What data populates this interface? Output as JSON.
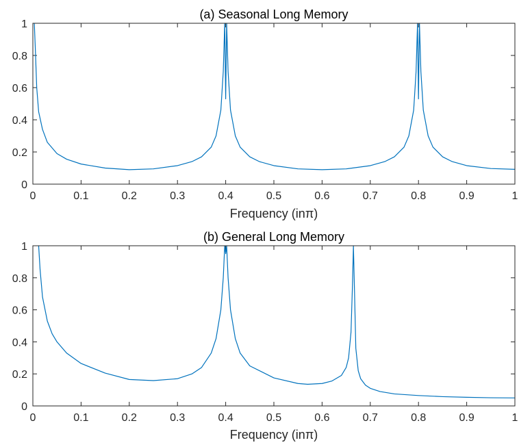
{
  "chart_data": [
    {
      "type": "line",
      "title": "(a) Seasonal Long Memory",
      "xlabel": "Frequency (inπ)",
      "ylabel": "",
      "xlim": [
        0,
        1
      ],
      "ylim": [
        0,
        1
      ],
      "xticks": [
        "0",
        "0.1",
        "0.2",
        "0.3",
        "0.4",
        "0.5",
        "0.6",
        "0.7",
        "0.8",
        "0.9",
        "1"
      ],
      "yticks": [
        "0",
        "0.2",
        "0.4",
        "0.6",
        "0.8",
        "1"
      ],
      "grid": false,
      "color": "#0072BD",
      "series": [
        {
          "x": [
            0.003,
            0.005,
            0.008,
            0.012,
            0.02,
            0.03,
            0.05,
            0.07,
            0.1,
            0.15,
            0.2,
            0.25,
            0.3,
            0.33,
            0.35,
            0.37,
            0.38,
            0.39,
            0.395,
            0.398,
            0.4,
            0.402,
            0.405,
            0.41,
            0.42,
            0.43,
            0.45,
            0.47,
            0.5,
            0.55,
            0.6,
            0.65,
            0.7,
            0.73,
            0.75,
            0.77,
            0.78,
            0.79,
            0.795,
            0.798,
            0.8,
            0.802,
            0.805,
            0.81,
            0.82,
            0.83,
            0.85,
            0.87,
            0.9,
            0.95,
            1.0
          ],
          "y": [
            1.0,
            0.85,
            0.6,
            0.45,
            0.34,
            0.26,
            0.19,
            0.155,
            0.125,
            0.1,
            0.09,
            0.095,
            0.115,
            0.14,
            0.17,
            0.23,
            0.3,
            0.46,
            0.7,
            1.0,
            0.53,
            1.0,
            0.7,
            0.46,
            0.3,
            0.23,
            0.17,
            0.14,
            0.115,
            0.095,
            0.09,
            0.095,
            0.115,
            0.14,
            0.17,
            0.23,
            0.3,
            0.46,
            0.7,
            1.0,
            0.53,
            1.0,
            0.7,
            0.46,
            0.3,
            0.23,
            0.17,
            0.14,
            0.115,
            0.097,
            0.092
          ]
        }
      ]
    },
    {
      "type": "line",
      "title": "(b) General Long Memory",
      "xlabel": "Frequency (inπ)",
      "ylabel": "",
      "xlim": [
        0,
        1
      ],
      "ylim": [
        0,
        1
      ],
      "xticks": [
        "0",
        "0.1",
        "0.2",
        "0.3",
        "0.4",
        "0.5",
        "0.6",
        "0.7",
        "0.8",
        "0.9",
        "1"
      ],
      "yticks": [
        "0",
        "0.2",
        "0.4",
        "0.6",
        "0.8",
        "1"
      ],
      "grid": false,
      "color": "#0072BD",
      "series": [
        {
          "x": [
            0.012,
            0.015,
            0.02,
            0.03,
            0.04,
            0.05,
            0.07,
            0.1,
            0.15,
            0.2,
            0.25,
            0.3,
            0.33,
            0.35,
            0.37,
            0.38,
            0.39,
            0.395,
            0.398,
            0.4,
            0.402,
            0.405,
            0.41,
            0.42,
            0.43,
            0.45,
            0.5,
            0.55,
            0.57,
            0.6,
            0.62,
            0.64,
            0.65,
            0.655,
            0.66,
            0.663,
            0.665,
            0.667,
            0.67,
            0.675,
            0.68,
            0.69,
            0.7,
            0.72,
            0.75,
            0.8,
            0.85,
            0.9,
            0.95,
            1.0
          ],
          "y": [
            1.0,
            0.85,
            0.68,
            0.53,
            0.45,
            0.4,
            0.33,
            0.265,
            0.205,
            0.165,
            0.158,
            0.17,
            0.2,
            0.24,
            0.33,
            0.42,
            0.6,
            0.8,
            1.0,
            0.95,
            1.0,
            0.8,
            0.6,
            0.42,
            0.33,
            0.25,
            0.175,
            0.14,
            0.135,
            0.14,
            0.155,
            0.19,
            0.24,
            0.3,
            0.46,
            0.75,
            1.0,
            0.75,
            0.36,
            0.22,
            0.17,
            0.13,
            0.11,
            0.09,
            0.075,
            0.065,
            0.058,
            0.054,
            0.051,
            0.05
          ]
        }
      ]
    }
  ]
}
